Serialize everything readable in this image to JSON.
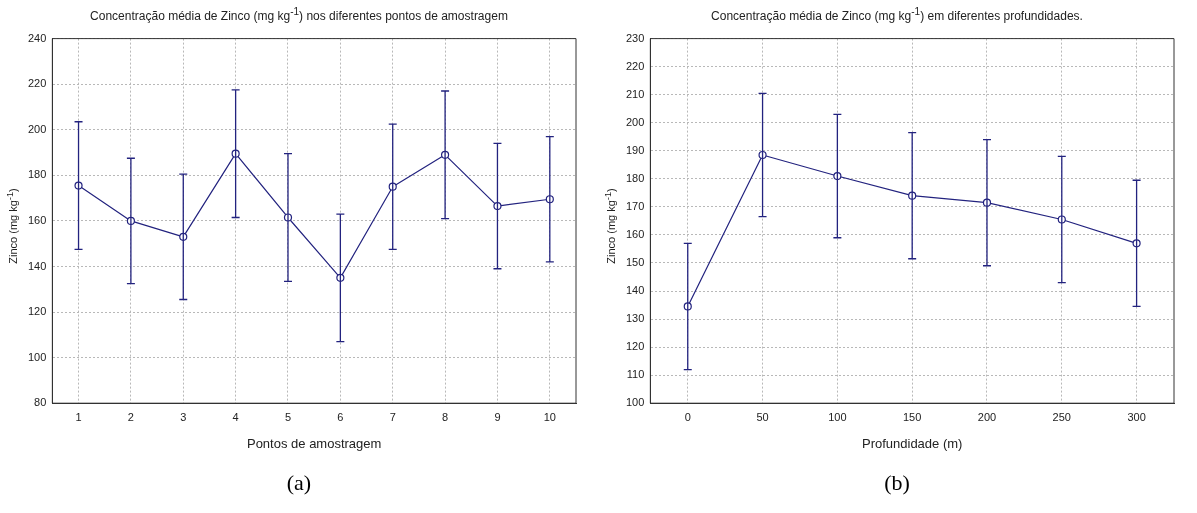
{
  "chart_data": [
    {
      "type": "line",
      "title": "Concentração média de Zinco (mg kg$^{-1}$) nos diferentes pontos de amostragem",
      "xlabel": "Pontos de amostragem",
      "ylabel": "Zinco (mg kg$^{-1}$)",
      "categories": [
        "1",
        "2",
        "3",
        "4",
        "5",
        "6",
        "7",
        "8",
        "9",
        "10"
      ],
      "series": [
        {
          "color": "#23237f",
          "values": [
            175.5,
            160,
            153,
            189.5,
            161.5,
            135,
            175,
            189,
            166.5,
            169.5
          ],
          "errors": [
            28,
            27.5,
            27.5,
            28,
            28,
            28,
            27.5,
            28,
            27.5,
            27.5
          ]
        }
      ],
      "marker": "circle",
      "grid": true,
      "ylim": [
        80,
        240
      ],
      "yticks": [
        80,
        100,
        120,
        140,
        160,
        180,
        200,
        220,
        240
      ],
      "annotations": [
        "(a)"
      ]
    },
    {
      "type": "line",
      "title": "Concentração média de Zinco (mg kg$^{-1}$) em diferentes profundidades.",
      "xlabel": "Profundidade (m)",
      "ylabel": "Zinco (mg kg$^{-1}$)",
      "x": [
        0,
        50,
        100,
        150,
        200,
        250,
        300
      ],
      "series": [
        {
          "color": "#23237f",
          "values": [
            134.5,
            188.5,
            181,
            174,
            171.5,
            165.5,
            157
          ],
          "errors": [
            22.5,
            22,
            22,
            22.5,
            22.5,
            22.5,
            22.5
          ]
        }
      ],
      "marker": "circle",
      "grid": true,
      "xlim": [
        -25,
        325
      ],
      "xticks": [
        0,
        50,
        100,
        150,
        200,
        250,
        300
      ],
      "ylim": [
        100,
        230
      ],
      "yticks": [
        100,
        110,
        120,
        130,
        140,
        150,
        160,
        170,
        180,
        190,
        200,
        210,
        220,
        230
      ],
      "annotations": [
        "(b)"
      ]
    }
  ]
}
